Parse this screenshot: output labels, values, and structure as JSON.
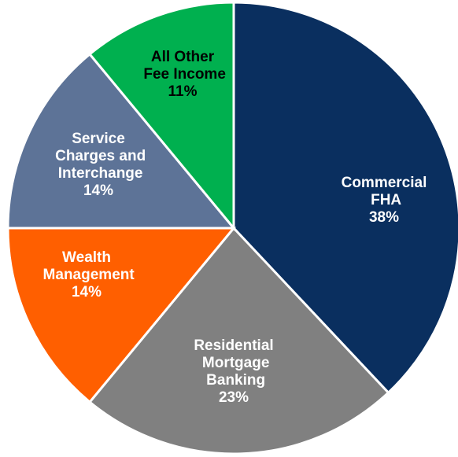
{
  "chart_data": {
    "type": "pie",
    "categories": [
      "Commercial FHA",
      "Residential Mortgage Banking",
      "Wealth Management",
      "Service Charges and Interchange",
      "All Other Fee Income"
    ],
    "values": [
      38,
      23,
      14,
      14,
      11
    ],
    "value_labels": [
      "38%",
      "23%",
      "14%",
      "14%",
      "11%"
    ],
    "colors": [
      "#0a2f5f",
      "#808080",
      "#ff5f00",
      "#5d7397",
      "#00b04f"
    ]
  }
}
